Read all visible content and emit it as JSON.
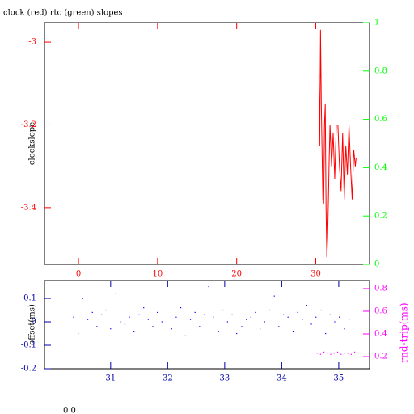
{
  "chart_data": [
    {
      "type": "line",
      "title": "clock (red) rtc (green) slopes",
      "ylabel": "clockslope",
      "xlim": [
        -4.3,
        36.8
      ],
      "xticks": [
        0,
        10,
        20,
        30
      ],
      "xcolor": "#ff0000",
      "ylim": [
        -3.537,
        -2.953
      ],
      "yticks": [
        -3,
        -3.2,
        -3.4
      ],
      "ycolor": "#ff0000",
      "y2lim": [
        0,
        1
      ],
      "y2ticks": [
        0,
        0.2,
        0.4,
        0.6,
        0.8,
        1
      ],
      "y2color": "#00ff00",
      "series": [
        {
          "color": "#ff0000",
          "x": [
            30.4,
            30.5,
            30.6,
            30.7,
            30.8,
            30.9,
            31.0,
            31.1,
            31.2,
            31.3,
            31.4,
            31.5,
            31.6,
            31.7,
            31.8,
            32.0,
            32.2,
            32.4,
            32.6,
            32.8,
            33.0,
            33.2,
            33.4,
            33.6,
            33.8,
            34.0,
            34.2,
            34.4,
            34.6,
            34.8,
            35.0,
            35.1
          ],
          "values": [
            -3.08,
            -3.25,
            -2.97,
            -3.15,
            -3.27,
            -3.38,
            -3.39,
            -3.2,
            -3.15,
            -3.4,
            -3.52,
            -3.47,
            -3.38,
            -3.28,
            -3.2,
            -3.3,
            -3.22,
            -3.33,
            -3.2,
            -3.2,
            -3.3,
            -3.36,
            -3.22,
            -3.38,
            -3.25,
            -3.32,
            -3.2,
            -3.3,
            -3.38,
            -3.26,
            -3.3,
            -3.28
          ]
        }
      ]
    },
    {
      "type": "scatter",
      "ylabel": "offset(ms)",
      "y2label": "rnd-trip(ms)",
      "xlim": [
        29.84,
        35.54
      ],
      "xticks": [
        31,
        32,
        33,
        34,
        35
      ],
      "xcolor": "#0000aa",
      "ylim": [
        -0.2,
        0.176
      ],
      "yticks": [
        0.1,
        0,
        -0.1,
        -0.2
      ],
      "ycolor": "#0000aa",
      "y2lim": [
        0.093,
        0.871
      ],
      "y2ticks": [
        0.2,
        0.4,
        0.6,
        0.8
      ],
      "y2color": "#ff00ff",
      "series": [
        {
          "color": "#0000ff",
          "x": [
            30.35,
            30.43,
            30.51,
            30.6,
            30.68,
            30.76,
            30.84,
            30.92,
            31.0,
            31.09,
            31.17,
            31.25,
            31.33,
            31.41,
            31.5,
            31.58,
            31.66,
            31.74,
            31.82,
            31.9,
            31.99,
            32.07,
            32.15,
            32.23,
            32.31,
            32.4,
            32.48,
            32.56,
            32.64,
            32.72,
            32.8,
            32.89,
            32.97,
            33.05,
            33.13,
            33.21,
            33.3,
            33.38,
            33.46,
            33.54,
            33.62,
            33.7,
            33.79,
            33.87,
            33.95,
            34.03,
            34.11,
            34.2,
            34.28,
            34.36,
            34.44,
            34.52,
            34.6,
            34.69,
            34.77,
            34.85,
            34.93,
            35.01,
            35.1,
            35.18
          ],
          "values": [
            0.02,
            -0.05,
            0.1,
            0.01,
            0.04,
            -0.02,
            0.03,
            0.05,
            -0.03,
            0.12,
            0.0,
            -0.01,
            0.02,
            -0.04,
            0.03,
            0.06,
            0.01,
            -0.02,
            0.04,
            0.0,
            0.05,
            -0.03,
            0.02,
            0.06,
            -0.06,
            0.01,
            0.04,
            -0.02,
            0.03,
            0.15,
            0.02,
            -0.04,
            0.05,
            0.0,
            0.03,
            -0.05,
            -0.02,
            0.01,
            0.02,
            0.04,
            -0.03,
            0.0,
            0.05,
            0.11,
            -0.02,
            0.03,
            0.02,
            -0.04,
            0.04,
            0.01,
            0.07,
            -0.01,
            0.02,
            0.05,
            -0.05,
            0.03,
            0.0,
            0.02,
            -0.03,
            0.01
          ]
        },
        {
          "color": "#ff00ff",
          "axis": "y2",
          "x": [
            34.62,
            34.68,
            34.74,
            34.8,
            34.86,
            34.92,
            34.98,
            35.04,
            35.1,
            35.16,
            35.22,
            35.28
          ],
          "values": [
            0.23,
            0.22,
            0.24,
            0.23,
            0.22,
            0.23,
            0.24,
            0.22,
            0.23,
            0.23,
            0.22,
            0.24
          ]
        }
      ]
    }
  ],
  "footer": "0 0"
}
